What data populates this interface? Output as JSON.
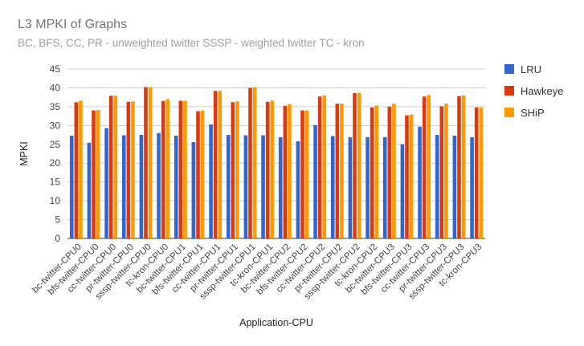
{
  "chart_data": {
    "type": "bar",
    "title": "L3 MPKI of Graphs",
    "subtitle": "BC, BFS, CC, PR - unweighted twitter SSSP - weighted twitter TC - kron",
    "xlabel": "Application-CPU",
    "ylabel": "MPKI",
    "ylim": [
      0,
      45
    ],
    "yticks": [
      0,
      5,
      10,
      15,
      20,
      25,
      30,
      35,
      40,
      45
    ],
    "grid": true,
    "legend_position": "right",
    "categories": [
      "bc-twitter-CPU0",
      "bfs-twitter-CPU0",
      "cc-twitter-CPU0",
      "pr-twitter-CPU0",
      "sssp-twitter-CPU0",
      "tc-kron-CPU0",
      "bc-twitter-CPU1",
      "bfs-twitter-CPU1",
      "cc-twitter-CPU1",
      "pr-twitter-CPU1",
      "sssp-twitter-CPU1",
      "tc-kron-CPU1",
      "bc-twitter-CPU2",
      "bfs-twitter-CPU2",
      "cc-twitter-CPU2",
      "pr-twitter-CPU2",
      "sssp-twitter-CPU2",
      "tc-kron-CPU2",
      "bc-twitter-CPU3",
      "bfs-twitter-CPU3",
      "cc-twitter-CPU3",
      "pr-twitter-CPU3",
      "sssp-twitter-CPU3",
      "tc-kron-CPU3"
    ],
    "series": [
      {
        "name": "LRU",
        "color": "#3366cc",
        "values": [
          27.3,
          25.4,
          29.3,
          27.4,
          27.5,
          28.0,
          27.3,
          25.6,
          30.3,
          27.5,
          27.4,
          27.4,
          26.9,
          25.8,
          30.1,
          27.2,
          26.9,
          26.9,
          26.9,
          25.0,
          29.7,
          27.5,
          27.3,
          26.9
        ]
      },
      {
        "name": "Hawkeye",
        "color": "#dc3912",
        "values": [
          36.2,
          34.0,
          37.9,
          36.3,
          40.2,
          36.5,
          36.6,
          33.8,
          39.2,
          36.2,
          40.0,
          36.3,
          35.2,
          34.0,
          37.7,
          35.8,
          38.6,
          34.8,
          35.0,
          32.7,
          37.7,
          35.1,
          37.8,
          34.8
        ]
      },
      {
        "name": "SHiP",
        "color": "#ff9900",
        "values": [
          36.6,
          34.1,
          37.9,
          36.4,
          40.2,
          37.0,
          36.6,
          34.0,
          39.2,
          36.4,
          40.2,
          36.6,
          35.7,
          34.0,
          38.0,
          35.8,
          38.7,
          35.3,
          35.8,
          32.9,
          38.1,
          35.8,
          38.0,
          34.8
        ]
      }
    ]
  }
}
